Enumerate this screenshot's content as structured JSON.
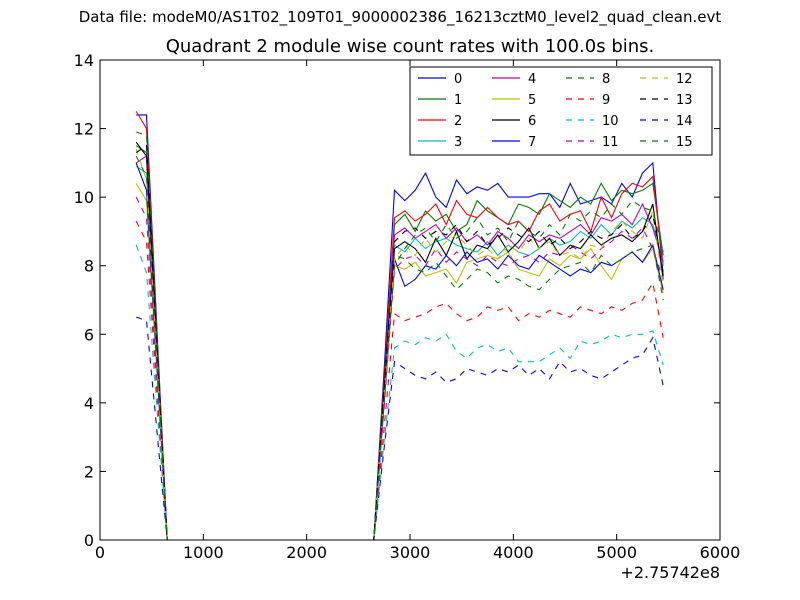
{
  "header": {
    "supertitle": "Data file: modeM0/AS1T02_109T01_9000002386_16213cztM0_level2_quad_clean.evt"
  },
  "chart_data": {
    "type": "line",
    "title": "Quadrant 2 module wise count rates with 100.0s bins.",
    "xlabel": "",
    "ylabel": "",
    "x_offset_label": "+2.75742e8",
    "xlim": [
      0,
      6000
    ],
    "ylim": [
      0,
      14
    ],
    "x_ticks": [
      "0",
      "1000",
      "2000",
      "3000",
      "4000",
      "5000",
      "6000"
    ],
    "y_ticks": [
      "0",
      "2",
      "4",
      "6",
      "8",
      "10",
      "12",
      "14"
    ],
    "legend_position": "top-right",
    "grid": false,
    "x": [
      350,
      450,
      650,
      2650,
      2750,
      2850,
      2950,
      3050,
      3150,
      3250,
      3350,
      3450,
      3550,
      3650,
      3750,
      3850,
      3950,
      4050,
      4150,
      4250,
      4350,
      4450,
      4550,
      4650,
      4750,
      4850,
      4950,
      5050,
      5150,
      5250,
      5350,
      5450
    ],
    "series": [
      {
        "name": "0",
        "color": "#0000ff",
        "dash": false,
        "values": [
          12.4,
          12.4,
          0,
          0,
          5.0,
          10.2,
          9.9,
          10.2,
          10.7,
          10.0,
          9.7,
          10.5,
          10.1,
          10.3,
          10.2,
          10.4,
          10.0,
          10.0,
          10.0,
          10.1,
          10.1,
          9.7,
          10.4,
          9.8,
          9.9,
          10.0,
          9.8,
          10.4,
          10.0,
          10.7,
          11.0,
          7.7
        ]
      },
      {
        "name": "1",
        "color": "#008000",
        "dash": false,
        "values": [
          11.5,
          11.3,
          0,
          0,
          4.7,
          9.2,
          9.5,
          9.0,
          9.6,
          9.3,
          9.5,
          9.0,
          9.2,
          9.9,
          9.6,
          9.4,
          9.2,
          9.8,
          9.7,
          9.5,
          10.1,
          9.9,
          9.7,
          10.0,
          9.8,
          10.4,
          9.9,
          10.2,
          10.1,
          10.2,
          10.4,
          8.3
        ]
      },
      {
        "name": "2",
        "color": "#ff0000",
        "dash": false,
        "values": [
          12.5,
          12.0,
          0,
          0,
          4.7,
          9.4,
          9.6,
          9.3,
          9.5,
          9.8,
          9.2,
          9.9,
          9.5,
          9.4,
          9.7,
          9.4,
          9.2,
          9.3,
          9.0,
          9.6,
          9.8,
          9.3,
          9.5,
          9.6,
          9.0,
          10.0,
          9.4,
          10.1,
          10.4,
          10.3,
          10.6,
          8.0
        ]
      },
      {
        "name": "3",
        "color": "#00bfbf",
        "dash": false,
        "values": [
          10.9,
          10.7,
          0,
          0,
          4.3,
          8.6,
          8.4,
          8.8,
          8.5,
          8.7,
          8.8,
          8.6,
          8.5,
          8.4,
          8.7,
          8.3,
          8.6,
          8.4,
          8.3,
          8.5,
          8.8,
          8.6,
          8.7,
          9.0,
          8.8,
          9.2,
          8.9,
          9.3,
          9.1,
          9.4,
          9.2,
          8.0
        ]
      },
      {
        "name": "4",
        "color": "#bf00bf",
        "dash": false,
        "values": [
          11.0,
          11.2,
          0,
          0,
          4.5,
          8.9,
          9.1,
          8.8,
          9.0,
          9.2,
          8.8,
          9.1,
          8.7,
          8.9,
          8.6,
          9.0,
          8.8,
          8.5,
          8.9,
          8.7,
          8.9,
          8.8,
          9.0,
          9.2,
          8.9,
          9.4,
          9.3,
          9.5,
          9.2,
          9.8,
          9.1,
          8.1
        ]
      },
      {
        "name": "5",
        "color": "#bfbf00",
        "dash": false,
        "values": [
          10.4,
          9.9,
          0,
          0,
          4.1,
          8.0,
          7.9,
          8.1,
          7.7,
          7.8,
          7.9,
          7.5,
          8.1,
          8.2,
          8.3,
          8.2,
          8.4,
          7.9,
          7.8,
          7.7,
          8.2,
          8.0,
          8.3,
          8.2,
          8.5,
          8.0,
          7.6,
          8.2,
          8.4,
          8.1,
          8.5,
          7.2
        ]
      },
      {
        "name": "6",
        "color": "#000000",
        "dash": false,
        "values": [
          11.6,
          11.2,
          0,
          0,
          4.4,
          8.5,
          8.7,
          8.5,
          8.1,
          8.8,
          8.3,
          9.0,
          8.2,
          8.6,
          8.5,
          8.9,
          8.4,
          8.7,
          9.1,
          8.5,
          8.8,
          8.3,
          8.6,
          8.5,
          8.9,
          8.6,
          8.8,
          8.9,
          8.7,
          9.0,
          9.8,
          7.6
        ]
      },
      {
        "name": "7",
        "color": "#0000ff",
        "dash": false,
        "values": [
          11.0,
          10.2,
          0,
          0,
          4.0,
          8.2,
          7.4,
          7.6,
          8.0,
          7.9,
          8.3,
          8.0,
          8.4,
          8.1,
          8.2,
          7.9,
          8.3,
          8.0,
          7.9,
          8.3,
          8.1,
          7.9,
          7.7,
          7.9,
          7.8,
          8.1,
          8.0,
          8.2,
          8.4,
          8.1,
          8.6,
          7.3
        ]
      },
      {
        "name": "8",
        "color": "#008000",
        "dash": true,
        "values": [
          11.9,
          11.8,
          0,
          0,
          4.2,
          8.3,
          8.2,
          7.9,
          7.8,
          8.1,
          7.7,
          7.3,
          7.6,
          7.9,
          7.8,
          7.5,
          7.7,
          7.6,
          7.4,
          7.3,
          7.6,
          7.9,
          8.0,
          8.1,
          7.8,
          8.3,
          8.0,
          8.2,
          8.4,
          8.5,
          8.6,
          7.0
        ]
      },
      {
        "name": "9",
        "color": "#ff0000",
        "dash": true,
        "values": [
          9.3,
          8.7,
          0,
          0,
          3.3,
          6.6,
          6.4,
          6.5,
          6.6,
          6.8,
          6.9,
          6.6,
          6.4,
          6.5,
          6.8,
          6.7,
          6.8,
          6.4,
          6.6,
          6.5,
          6.7,
          6.6,
          6.5,
          6.8,
          6.7,
          6.6,
          6.8,
          6.7,
          6.9,
          7.0,
          7.5,
          5.9
        ]
      },
      {
        "name": "10",
        "color": "#00bfbf",
        "dash": true,
        "values": [
          8.6,
          7.8,
          0,
          0,
          2.9,
          5.6,
          5.8,
          5.7,
          5.9,
          5.8,
          6.0,
          5.5,
          5.3,
          5.6,
          5.7,
          5.5,
          5.6,
          5.2,
          5.2,
          5.2,
          5.4,
          5.6,
          5.3,
          5.8,
          5.7,
          5.8,
          6.0,
          5.9,
          6.0,
          6.0,
          6.1,
          5.1
        ]
      },
      {
        "name": "11",
        "color": "#bf00bf",
        "dash": true,
        "values": [
          10.0,
          9.4,
          0,
          0,
          3.9,
          7.9,
          8.2,
          8.3,
          8.0,
          8.5,
          8.1,
          8.4,
          8.2,
          8.0,
          8.3,
          8.1,
          8.0,
          8.2,
          8.3,
          8.1,
          8.4,
          8.3,
          8.6,
          8.4,
          8.2,
          8.5,
          8.7,
          9.0,
          8.8,
          9.1,
          8.5,
          7.6
        ]
      },
      {
        "name": "12",
        "color": "#bfbf00",
        "dash": true,
        "values": [
          11.4,
          10.5,
          0,
          0,
          4.3,
          8.2,
          8.6,
          8.3,
          8.8,
          8.4,
          8.7,
          8.9,
          8.6,
          8.3,
          8.5,
          8.2,
          8.6,
          8.4,
          8.8,
          8.5,
          8.7,
          8.3,
          8.4,
          8.2,
          8.6,
          8.5,
          9.0,
          9.3,
          9.0,
          8.8,
          9.6,
          7.4
        ]
      },
      {
        "name": "13",
        "color": "#000000",
        "dash": true,
        "values": [
          11.3,
          11.5,
          0,
          0,
          4.5,
          8.7,
          9.0,
          9.1,
          8.8,
          9.0,
          8.9,
          9.2,
          8.7,
          9.0,
          8.6,
          8.8,
          9.1,
          8.9,
          8.7,
          9.0,
          8.6,
          8.8,
          8.5,
          8.7,
          9.0,
          8.8,
          8.9,
          9.2,
          8.8,
          9.0,
          9.5,
          7.8
        ]
      },
      {
        "name": "14",
        "color": "#0000ff",
        "dash": true,
        "values": [
          6.5,
          6.4,
          0,
          0,
          2.7,
          5.2,
          5.0,
          4.8,
          4.7,
          4.9,
          4.6,
          4.7,
          5.0,
          4.9,
          4.8,
          5.0,
          4.9,
          5.1,
          4.8,
          5.0,
          4.7,
          5.2,
          4.9,
          5.0,
          4.8,
          4.7,
          4.9,
          5.1,
          5.3,
          5.4,
          5.9,
          4.5
        ]
      },
      {
        "name": "15",
        "color": "#008000",
        "dash": true,
        "values": [
          11.2,
          10.6,
          0,
          0,
          4.1,
          8.0,
          8.5,
          8.9,
          9.1,
          8.7,
          9.2,
          8.8,
          9.0,
          9.4,
          8.9,
          9.1,
          8.7,
          9.3,
          9.0,
          8.8,
          9.2,
          8.9,
          9.5,
          9.3,
          9.6,
          9.4,
          9.8,
          9.5,
          9.9,
          9.7,
          9.6,
          8.4
        ]
      }
    ]
  }
}
